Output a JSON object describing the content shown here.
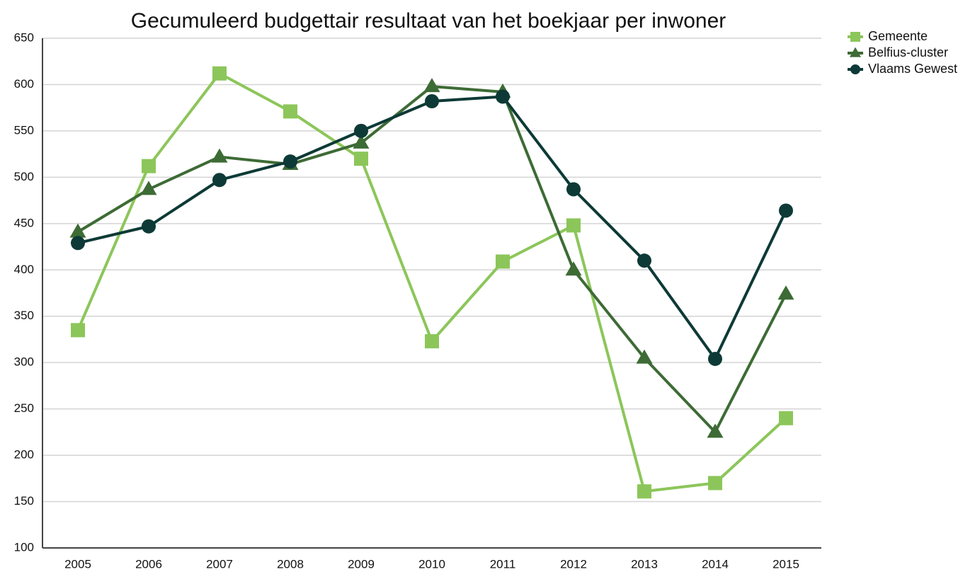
{
  "chart_data": {
    "type": "line",
    "title": "Gecumuleerd budgettair resultaat van het boekjaar per inwoner",
    "categories": [
      "2005",
      "2006",
      "2007",
      "2008",
      "2009",
      "2010",
      "2011",
      "2012",
      "2013",
      "2014",
      "2015"
    ],
    "series": [
      {
        "name": "Gemeente",
        "color": "#8cc65a",
        "marker": "square",
        "values": [
          335,
          512,
          612,
          571,
          520,
          323,
          409,
          448,
          161,
          170,
          240
        ]
      },
      {
        "name": "Belfius-cluster",
        "color": "#3d6b35",
        "marker": "triangle",
        "values": [
          441,
          487,
          522,
          514,
          537,
          598,
          592,
          400,
          305,
          225,
          374
        ]
      },
      {
        "name": "Vlaams Gewest",
        "color": "#0d3a36",
        "marker": "circle",
        "values": [
          429,
          447,
          497,
          517,
          550,
          582,
          587,
          487,
          410,
          304,
          464
        ]
      }
    ],
    "ylim": [
      100,
      650
    ],
    "yticks": [
      100,
      150,
      200,
      250,
      300,
      350,
      400,
      450,
      500,
      550,
      600,
      650
    ],
    "grid": true,
    "legend": "right"
  }
}
